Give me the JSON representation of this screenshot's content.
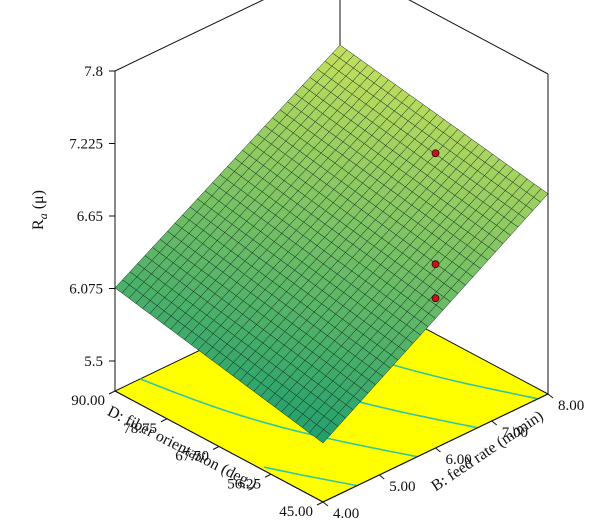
{
  "chart_data": {
    "type": "surface3d",
    "title": "",
    "z_axis": {
      "label_main": "R",
      "label_sub": "a",
      "label_unit": " (μ)",
      "ticks": [
        "5.5",
        "6.075",
        "6.65",
        "7.225",
        "7.8"
      ],
      "range": [
        5.5,
        7.8
      ]
    },
    "x_axis": {
      "label": "B: feed rate (m/min)",
      "ticks": [
        "4.00",
        "5.00",
        "6.00",
        "7.00",
        "8.00"
      ],
      "range": [
        4.0,
        8.0
      ]
    },
    "y_axis": {
      "label": "D: fiber orientation (deg.)",
      "ticks": [
        "45.00",
        "56.25",
        "67.50",
        "78.75",
        "90.00"
      ],
      "range": [
        45.0,
        90.0
      ]
    },
    "surface": {
      "corners": [
        {
          "feed_rate": 4.0,
          "fiber_orientation": 45.0,
          "Ra": 5.73
        },
        {
          "feed_rate": 8.0,
          "fiber_orientation": 45.0,
          "Ra": 6.85
        },
        {
          "feed_rate": 4.0,
          "fiber_orientation": 90.0,
          "Ra": 6.08
        },
        {
          "feed_rate": 8.0,
          "fiber_orientation": 90.0,
          "Ra": 7.15
        }
      ],
      "grid_lines": 30
    },
    "design_points": [
      {
        "feed_rate": 6.0,
        "fiber_orientation": 45.0,
        "Ra": 7.6
      },
      {
        "feed_rate": 6.0,
        "fiber_orientation": 45.0,
        "Ra": 6.72
      },
      {
        "feed_rate": 6.0,
        "fiber_orientation": 45.0,
        "Ra": 6.45
      }
    ],
    "colors": {
      "surface_low": "#1f9e6e",
      "surface_high": "#c9e15c",
      "mesh": "#0a2a1a",
      "floor": "#ffff00",
      "contour": "#2fc7a0",
      "point": "#cc1111",
      "axis": "#111111"
    }
  }
}
